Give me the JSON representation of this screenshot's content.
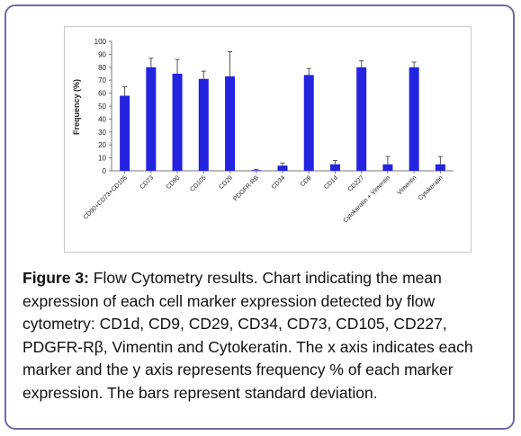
{
  "chart_data": {
    "type": "bar",
    "title": "",
    "xlabel": "",
    "ylabel": "Frequency (%)",
    "ylim": [
      0,
      100
    ],
    "yticks": [
      0,
      10,
      20,
      30,
      40,
      50,
      60,
      70,
      80,
      90,
      100
    ],
    "grid": false,
    "legend": "none",
    "bar_color": "#2323e0",
    "categories": [
      "CD90+CD73+CD105",
      "CD73",
      "CD90",
      "CD105",
      "CD29",
      "PDGFR-RB",
      "CD34",
      "CD9",
      "CD1d",
      "CD227",
      "Cytokeratin + Vimentin",
      "Vimentin",
      "Cytokeratin"
    ],
    "values": [
      58,
      80,
      75,
      71,
      73,
      0.5,
      4,
      74,
      5,
      80,
      5,
      80,
      5
    ],
    "errors": [
      7,
      7,
      11,
      6,
      19,
      0.5,
      2,
      5,
      3,
      5,
      6,
      4,
      6
    ]
  },
  "caption": {
    "label": "Figure 3:",
    "text": " Flow Cytometry results. Chart indicating the mean expression of each cell marker expression detected by flow cytometry: CD1d, CD9, CD29, CD34, CD73, CD105, CD227, PDGFR-Rβ, Vimentin and Cytokeratin. The x axis indicates each marker and the y axis represents frequency % of each marker expression. The bars represent standard deviation."
  }
}
